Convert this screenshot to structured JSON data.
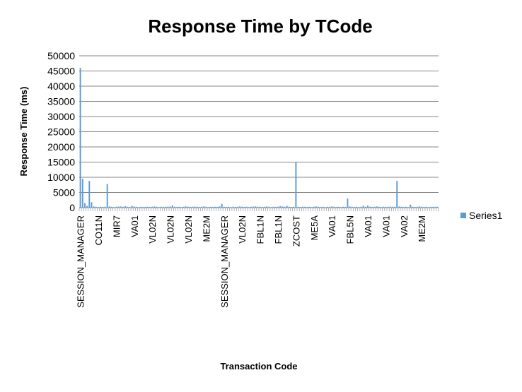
{
  "chart_data": {
    "type": "bar",
    "title": "Response Time by TCode",
    "x_label": "Transaction Code",
    "y_label": "Response Time (ms)",
    "categories": [
      "SESSION_MANAGER",
      null,
      null,
      null,
      null,
      null,
      null,
      null,
      "CO11N",
      null,
      null,
      null,
      null,
      null,
      null,
      null,
      "MIR7",
      null,
      null,
      null,
      null,
      null,
      null,
      null,
      "VA01",
      null,
      null,
      null,
      null,
      null,
      null,
      null,
      "VL02N",
      null,
      null,
      null,
      null,
      null,
      null,
      null,
      "VL02N",
      null,
      null,
      null,
      null,
      null,
      null,
      null,
      "VL02N",
      null,
      null,
      null,
      null,
      null,
      null,
      null,
      "ME2M",
      null,
      null,
      null,
      null,
      null,
      null,
      null,
      "SESSION_MANAGER",
      null,
      null,
      null,
      null,
      null,
      null,
      null,
      "VL02N",
      null,
      null,
      null,
      null,
      null,
      null,
      null,
      "FBL1N",
      null,
      null,
      null,
      null,
      null,
      null,
      null,
      "FBL1N",
      null,
      null,
      null,
      null,
      null,
      null,
      null,
      "ZCOST",
      null,
      null,
      null,
      null,
      null,
      null,
      null,
      "ME5A",
      null,
      null,
      null,
      null,
      null,
      null,
      null,
      "VA01",
      null,
      null,
      null,
      null,
      null,
      null,
      null,
      "FBL5N",
      null,
      null,
      null,
      null,
      null,
      null,
      null,
      "VA01",
      null,
      null,
      null,
      null,
      null,
      null,
      null,
      "VA01",
      null,
      null,
      null,
      null,
      null,
      null,
      null,
      "VA02",
      null,
      null,
      null,
      null,
      null,
      null,
      null,
      "ME2M",
      null,
      null,
      null,
      null,
      null,
      null,
      null
    ],
    "series": [
      {
        "name": "Series1",
        "color": "#5b9bd5",
        "values": [
          46000,
          9500,
          1500,
          600,
          8800,
          1800,
          400,
          300,
          200,
          300,
          250,
          300,
          7800,
          400,
          300,
          200,
          300,
          350,
          400,
          300,
          500,
          300,
          250,
          600,
          400,
          300,
          200,
          300,
          250,
          300,
          300,
          250,
          300,
          400,
          300,
          200,
          300,
          250,
          300,
          350,
          400,
          800,
          300,
          250,
          300,
          200,
          300,
          400,
          300,
          250,
          300,
          350,
          300,
          250,
          300,
          400,
          300,
          200,
          300,
          250,
          300,
          250,
          400,
          1200,
          300,
          250,
          300,
          200,
          300,
          250,
          300,
          400,
          300,
          250,
          300,
          200,
          300,
          350,
          400,
          300,
          300,
          250,
          300,
          400,
          300,
          200,
          300,
          250,
          300,
          500,
          400,
          300,
          600,
          300,
          250,
          300,
          15000,
          300,
          250,
          300,
          300,
          250,
          300,
          200,
          300,
          400,
          300,
          250,
          300,
          200,
          300,
          250,
          400,
          300,
          250,
          300,
          200,
          300,
          250,
          3000,
          400,
          300,
          250,
          300,
          200,
          300,
          600,
          300,
          700,
          300,
          250,
          300,
          400,
          300,
          200,
          300,
          250,
          300,
          350,
          300,
          300,
          8800,
          400,
          300,
          250,
          300,
          200,
          1000,
          300,
          250,
          300,
          400,
          300,
          250,
          300,
          200,
          300,
          250,
          300,
          300
        ]
      }
    ],
    "ylim": [
      0,
      50000
    ],
    "yticks": [
      0,
      5000,
      10000,
      15000,
      20000,
      25000,
      30000,
      35000,
      40000,
      45000,
      50000
    ],
    "grid": true,
    "legend": "right"
  }
}
